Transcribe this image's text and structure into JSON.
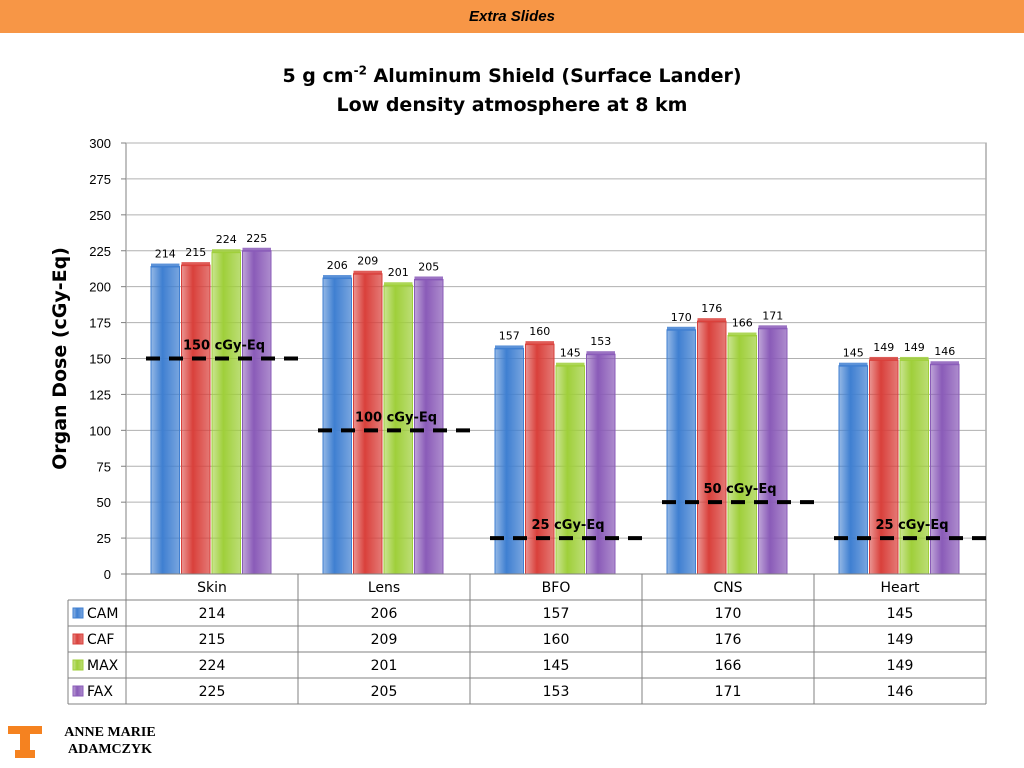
{
  "header": {
    "label": "Extra Slides"
  },
  "title": {
    "line1_prefix": "5 g cm",
    "line1_exponent": "-2",
    "line1_suffix": " Aluminum Shield (Surface Lander)",
    "line2": "Low density atmosphere at 8 km"
  },
  "author": {
    "line1": "ANNE MARIE",
    "line2": "ADAMCZYK"
  },
  "logo": {
    "icon": "tennessee-t-logo-icon",
    "color": "#f58220"
  },
  "chart_data": {
    "type": "bar",
    "ylabel": "Organ Dose (cGy-Eq)",
    "ylim": [
      0,
      300
    ],
    "yticks": [
      0,
      25,
      50,
      75,
      100,
      125,
      150,
      175,
      200,
      225,
      250,
      275,
      300
    ],
    "grid": true,
    "categories": [
      "Skin",
      "Lens",
      "BFO",
      "CNS",
      "Heart"
    ],
    "series": [
      {
        "name": "CAM",
        "color": "#3f7fd1",
        "values": [
          214,
          206,
          157,
          170,
          145
        ]
      },
      {
        "name": "CAF",
        "color": "#d9403b",
        "values": [
          215,
          209,
          160,
          176,
          149
        ]
      },
      {
        "name": "MAX",
        "color": "#9fcf3a",
        "values": [
          224,
          201,
          145,
          166,
          149
        ]
      },
      {
        "name": "FAX",
        "color": "#8a5bb8",
        "values": [
          225,
          205,
          153,
          171,
          146
        ]
      }
    ],
    "limits": [
      {
        "category": "Skin",
        "value": 150,
        "label": "150 cGy-Eq"
      },
      {
        "category": "Lens",
        "value": 100,
        "label": "100 cGy-Eq"
      },
      {
        "category": "BFO",
        "value": 25,
        "label": "25 cGy-Eq"
      },
      {
        "category": "CNS",
        "value": 50,
        "label": "50 cGy-Eq"
      },
      {
        "category": "Heart",
        "value": 25,
        "label": "25 cGy-Eq"
      }
    ],
    "data_table": true
  }
}
